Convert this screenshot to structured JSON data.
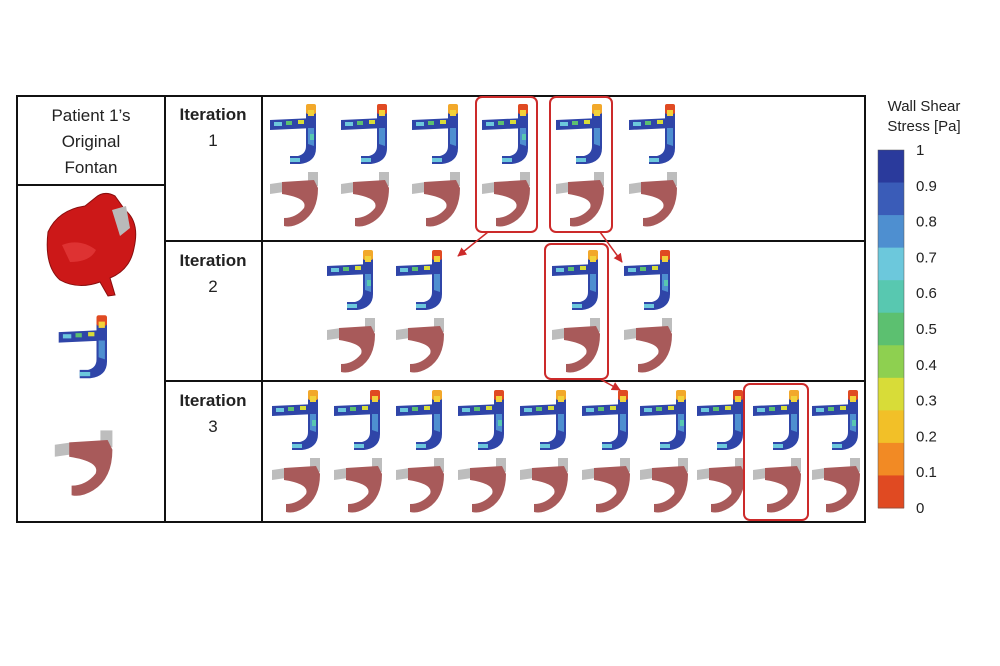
{
  "original_panel": {
    "title_lines": [
      "Patient 1’s",
      "Original",
      "Fontan"
    ]
  },
  "iterations": [
    {
      "label_line1": "Iteration",
      "label_line2": "1",
      "designs": 6,
      "highlighted": [
        4,
        5
      ]
    },
    {
      "label_line1": "Iteration",
      "label_line2": "2",
      "designs": 4,
      "highlighted": [
        3
      ]
    },
    {
      "label_line1": "Iteration",
      "label_line2": "3",
      "designs": 10,
      "highlighted": [
        9
      ]
    }
  ],
  "colorbar": {
    "title_line1": "Wall Shear",
    "title_line2": "Stress [Pa]",
    "ticks": [
      "1",
      "0.9",
      "0.8",
      "0.7",
      "0.6",
      "0.5",
      "0.4",
      "0.3",
      "0.2",
      "0.1",
      "0"
    ],
    "colors": [
      "#2a3a9c",
      "#3a5cb8",
      "#4e8fd0",
      "#6cc8dc",
      "#58c8b0",
      "#5cc070",
      "#8ed050",
      "#d8dc38",
      "#f2c028",
      "#f28a24",
      "#e04a22"
    ]
  },
  "colors": {
    "highlight": "#cc2a2a",
    "vessel": "#a85a5a",
    "heart": "#cc1818"
  }
}
